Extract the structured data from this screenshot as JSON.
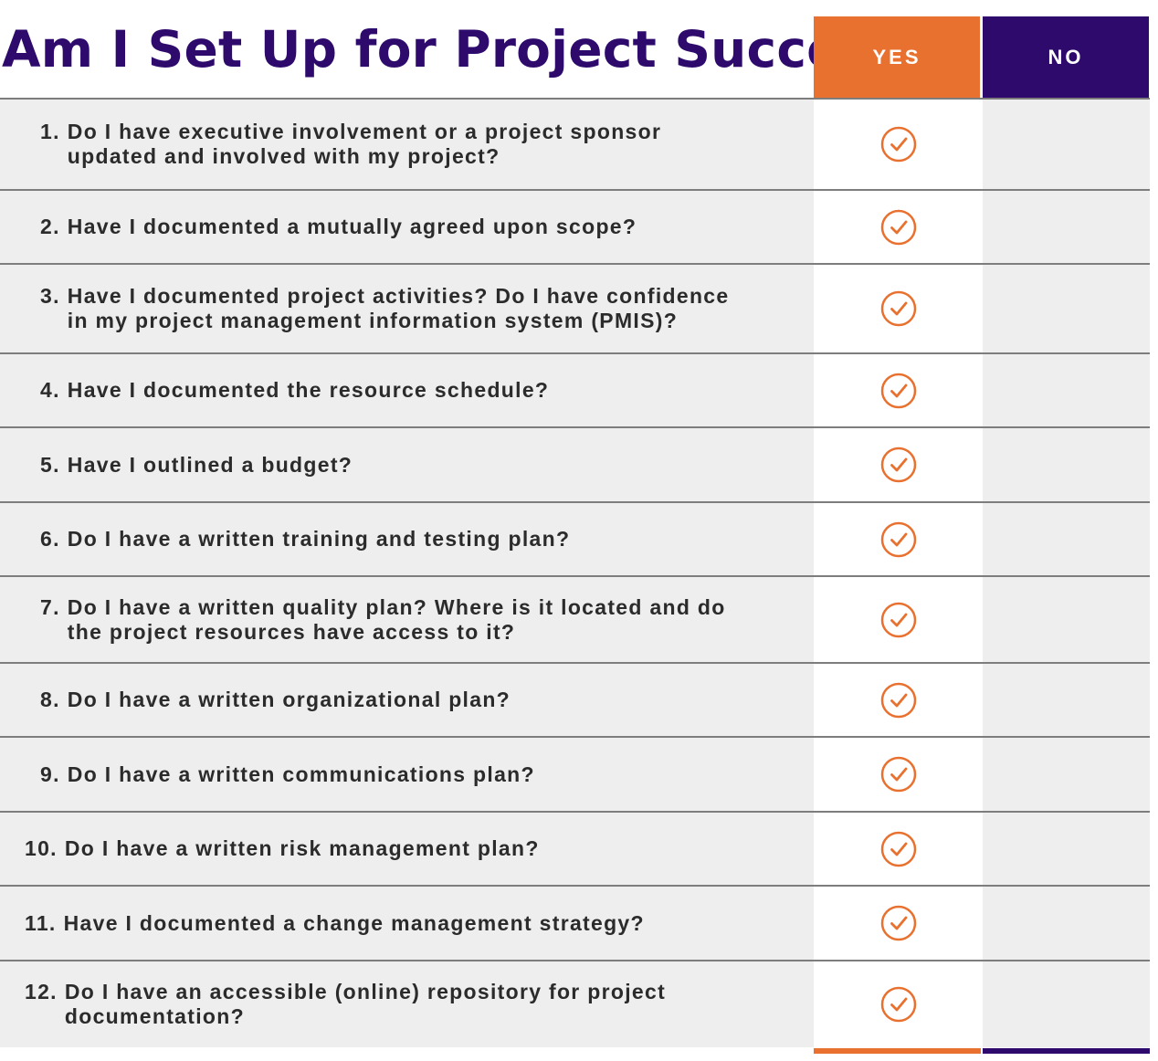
{
  "title": "Am I Set Up for Project Success?",
  "columns": {
    "yes": "YES",
    "no": "NO"
  },
  "colors": {
    "title": "#2d0a6b",
    "yes_accent": "#e8712f",
    "no_accent": "#2d0a6b",
    "row_bg": "#eeeeee",
    "divider": "#7d7d7d"
  },
  "icons": {
    "answer_mark": "check-circle-icon"
  },
  "questions": [
    {
      "num": "1.",
      "lines": [
        "Do I have executive involvement or a project sponsor",
        "updated and involved with my project?"
      ],
      "answer": "yes"
    },
    {
      "num": "2.",
      "lines": [
        "Have I documented a mutually agreed upon scope?"
      ],
      "answer": "yes"
    },
    {
      "num": "3.",
      "lines": [
        "Have I documented project activities? Do I have confidence",
        "in my project management information system (PMIS)?"
      ],
      "answer": "yes"
    },
    {
      "num": "4.",
      "lines": [
        "Have I documented the resource schedule?"
      ],
      "answer": "yes"
    },
    {
      "num": "5.",
      "lines": [
        "Have I outlined a budget?"
      ],
      "answer": "yes"
    },
    {
      "num": "6.",
      "lines": [
        "Do I have a written training and testing plan?"
      ],
      "answer": "yes"
    },
    {
      "num": "7.",
      "lines": [
        "Do I have a written quality plan? Where is it located and do",
        "the project resources have access to it?"
      ],
      "answer": "yes"
    },
    {
      "num": "8.",
      "lines": [
        "Do I have a written organizational plan?"
      ],
      "answer": "yes"
    },
    {
      "num": "9.",
      "lines": [
        "Do I have a written communications plan?"
      ],
      "answer": "yes"
    },
    {
      "num": "10.",
      "lines": [
        "Do I have a written risk management plan?"
      ],
      "answer": "yes"
    },
    {
      "num": "11.",
      "lines": [
        "Have I documented a change management strategy?"
      ],
      "answer": "yes"
    },
    {
      "num": "12.",
      "lines": [
        "Do I have an accessible (online) repository for project",
        "documentation?"
      ],
      "answer": "yes"
    }
  ]
}
